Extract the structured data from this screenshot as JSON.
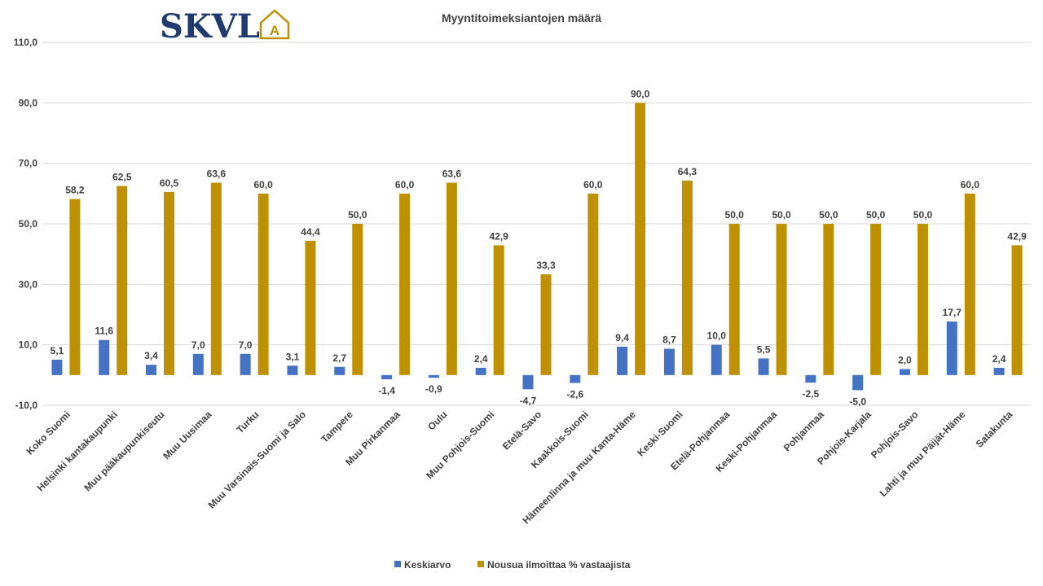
{
  "logo": {
    "text": "SKVL",
    "mark": "A"
  },
  "chart_data": {
    "type": "bar",
    "title": "Myyntitoimeksiantojen määrä",
    "categories": [
      "Koko Suomi",
      "Helsinki kantakaupunki",
      "Muu pääkaupunkiseutu",
      "Muu Uusimaa",
      "Turku",
      "Muu Varsinais-Suomi ja Salo",
      "Tampere",
      "Muu Pirkanmaa",
      "Oulu",
      "Muu Pohjois-Suomi",
      "Etelä-Savo",
      "Kaakkois-Suomi",
      "Hämeenlinna ja muu Kanta-Häme",
      "Keski-Suomi",
      "Etelä-Pohjanmaa",
      "Keski-Pohjanmaa",
      "Pohjanmaa",
      "Pohjois-Karjala",
      "Pohjois-Savo",
      "Lahti ja muu Päijät-Häme",
      "Satakunta"
    ],
    "series": [
      {
        "name": "Keskiarvo",
        "color": "#4472C4",
        "values": [
          5.1,
          11.6,
          3.4,
          7.0,
          7.0,
          3.1,
          2.7,
          -1.4,
          -0.9,
          2.4,
          -4.7,
          -2.6,
          9.4,
          8.7,
          10.0,
          5.5,
          -2.5,
          -5.0,
          2.0,
          17.7,
          2.4
        ],
        "labels": [
          "5,1",
          "11,6",
          "3,4",
          "7,0",
          "7,0",
          "3,1",
          "2,7",
          "-1,4",
          "-0,9",
          "2,4",
          "-4,7",
          "-2,6",
          "9,4",
          "8,7",
          "10,0",
          "5,5",
          "-2,5",
          "-5,0",
          "2,0",
          "17,7",
          "2,4"
        ]
      },
      {
        "name": "Nousua ilmoittaa % vastaajista",
        "color": "#BF9000",
        "values": [
          58.2,
          62.5,
          60.5,
          63.6,
          60.0,
          44.4,
          50.0,
          60.0,
          63.6,
          42.9,
          33.3,
          60.0,
          90.0,
          64.3,
          50.0,
          50.0,
          50.0,
          50.0,
          50.0,
          60.0,
          42.9
        ],
        "labels": [
          "58,2",
          "62,5",
          "60,5",
          "63,6",
          "60,0",
          "44,4",
          "50,0",
          "60,0",
          "63,6",
          "42,9",
          "33,3",
          "60,0",
          "90,0",
          "64,3",
          "50,0",
          "50,0",
          "50,0",
          "50,0",
          "50,0",
          "60,0",
          "42,9"
        ]
      }
    ],
    "yticks": [
      -10,
      10,
      30,
      50,
      70,
      90,
      110
    ],
    "ytick_labels": [
      "-10,0",
      "10,0",
      "30,0",
      "50,0",
      "70,0",
      "90,0",
      "110,0"
    ],
    "ylim": [
      -10,
      110
    ],
    "grid": true,
    "legend": "bottom",
    "colors": {
      "gridline": "#D9D9D9",
      "text": "#404040",
      "logo": "#1F3A6E",
      "logo_accent": "#BF9000"
    }
  }
}
